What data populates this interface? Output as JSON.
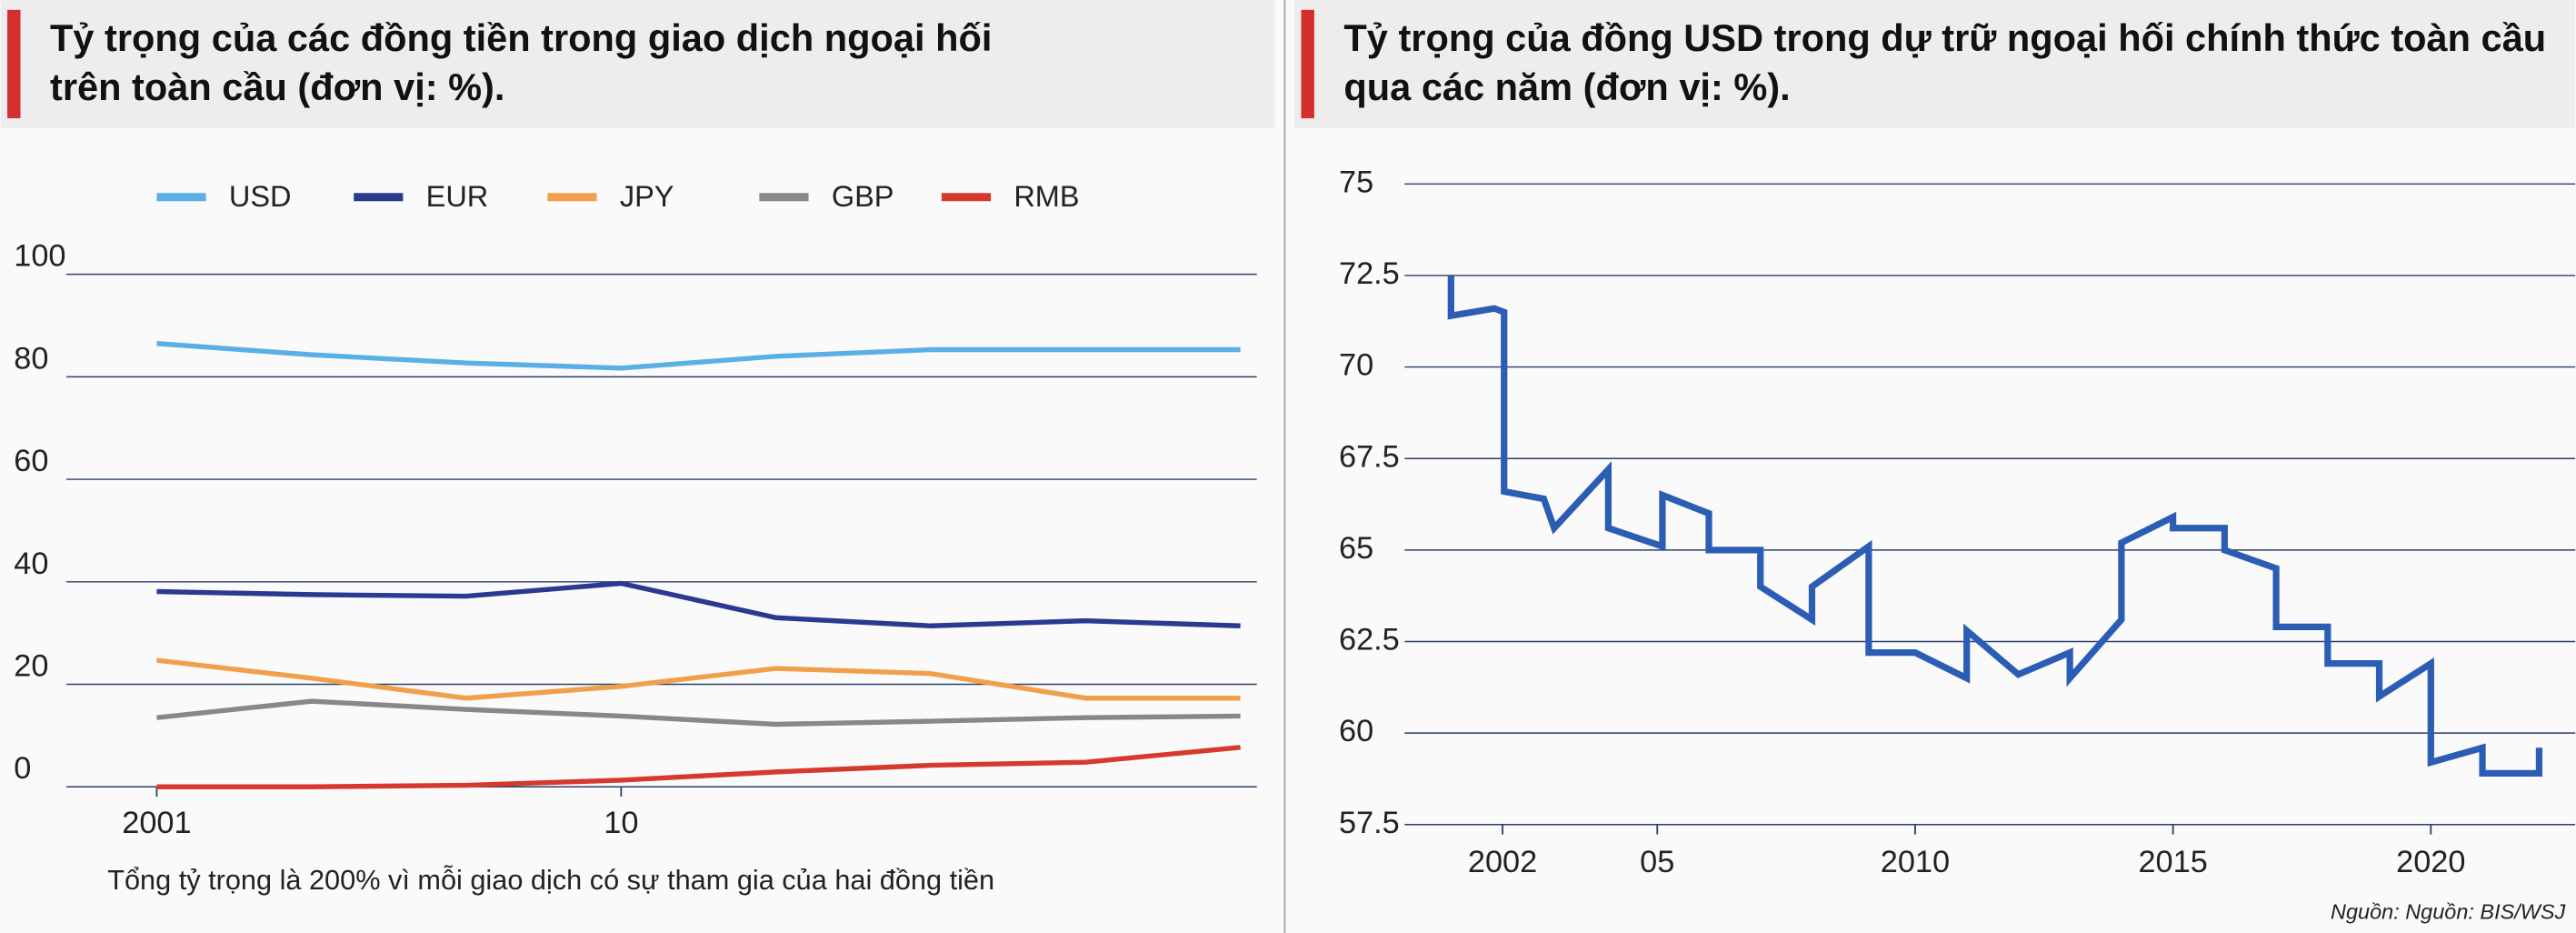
{
  "chart_data": [
    {
      "type": "line",
      "title": "Tỷ trọng của các đồng tiền trong giao dịch ngoại hối trên toàn cầu (đơn vị: %).",
      "note": "Tổng tỷ trọng là 200% vì mỗi giao dịch có sự tham gia của hai đồng tiền",
      "x": [
        2001,
        2004,
        2007,
        2010,
        2013,
        2016,
        2019,
        2022
      ],
      "series": [
        {
          "name": "USD",
          "color": "#5aafe6",
          "values": [
            86.5,
            84.3,
            82.7,
            81.7,
            84.0,
            85.3,
            85.3,
            85.3
          ]
        },
        {
          "name": "EUR",
          "color": "#2b3990",
          "values": [
            38.1,
            37.5,
            37.2,
            39.7,
            33.0,
            31.4,
            32.4,
            31.4
          ]
        },
        {
          "name": "JPY",
          "color": "#f0a04b",
          "values": [
            24.7,
            21.2,
            17.3,
            19.6,
            23.1,
            22.1,
            17.3,
            17.3
          ]
        },
        {
          "name": "GBP",
          "color": "#888888",
          "values": [
            13.5,
            16.7,
            15.1,
            13.8,
            12.2,
            12.8,
            13.5,
            13.8
          ]
        },
        {
          "name": "RMB",
          "color": "#d63a2f",
          "values": [
            0,
            0,
            0.3,
            1.3,
            2.9,
            4.2,
            4.8,
            7.7
          ]
        }
      ],
      "xlim": [
        2001,
        2022
      ],
      "xticks": [
        2001,
        {
          "value": 2010,
          "label": "10"
        }
      ],
      "ylim": [
        0,
        100
      ],
      "yticks": [
        0,
        20,
        40,
        60,
        80,
        100
      ],
      "grid": true,
      "legend": "top"
    },
    {
      "type": "line",
      "title": "Tỷ trọng của đồng USD trong dự trữ ngoại hối chính thức toàn cầu qua các năm (đơn vị: %).",
      "source": "Nguồn: Nguồn: BIS/WSJ",
      "series": [
        {
          "color": "#2b5db5",
          "x": [
            2001.0,
            2001.0,
            2001.84,
            2002.03,
            2002.03,
            2002.8,
            2003.0,
            2004.05,
            2004.05,
            2005.1,
            2005.1,
            2006.0,
            2006.0,
            2007.0,
            2007.0,
            2008.0,
            2008.0,
            2009.1,
            2009.1,
            2010.0,
            2011.0,
            2011.0,
            2012.0,
            2013.0,
            2013.0,
            2014.0,
            2014.0,
            2015.0,
            2015.0,
            2016.0,
            2016.0,
            2017.0,
            2017.0,
            2018.0,
            2018.0,
            2019.0,
            2019.0,
            2020.0,
            2020.0,
            2021.0,
            2021.0,
            2022.1,
            2022.1
          ],
          "values": [
            72.5,
            71.4,
            71.6,
            71.5,
            66.6,
            66.4,
            65.6,
            67.2,
            65.6,
            65.1,
            66.5,
            66.0,
            65.0,
            65.0,
            64.0,
            63.1,
            64.0,
            65.1,
            62.2,
            62.2,
            61.5,
            62.8,
            61.6,
            62.2,
            61.5,
            63.1,
            65.2,
            65.9,
            65.6,
            65.6,
            65.0,
            64.5,
            62.9,
            62.9,
            61.9,
            61.9,
            61.0,
            61.9,
            59.2,
            59.6,
            58.9,
            58.9,
            59.6
          ]
        }
      ],
      "xlim": [
        2000.1,
        2022.8
      ],
      "xticks": [
        2002,
        {
          "value": 2005,
          "label": "05"
        },
        2010,
        2015,
        2020
      ],
      "ylim": [
        57.5,
        75
      ],
      "yticks": [
        57.5,
        60,
        62.5,
        65,
        67.5,
        70,
        72.5,
        75
      ],
      "grid": true
    }
  ]
}
